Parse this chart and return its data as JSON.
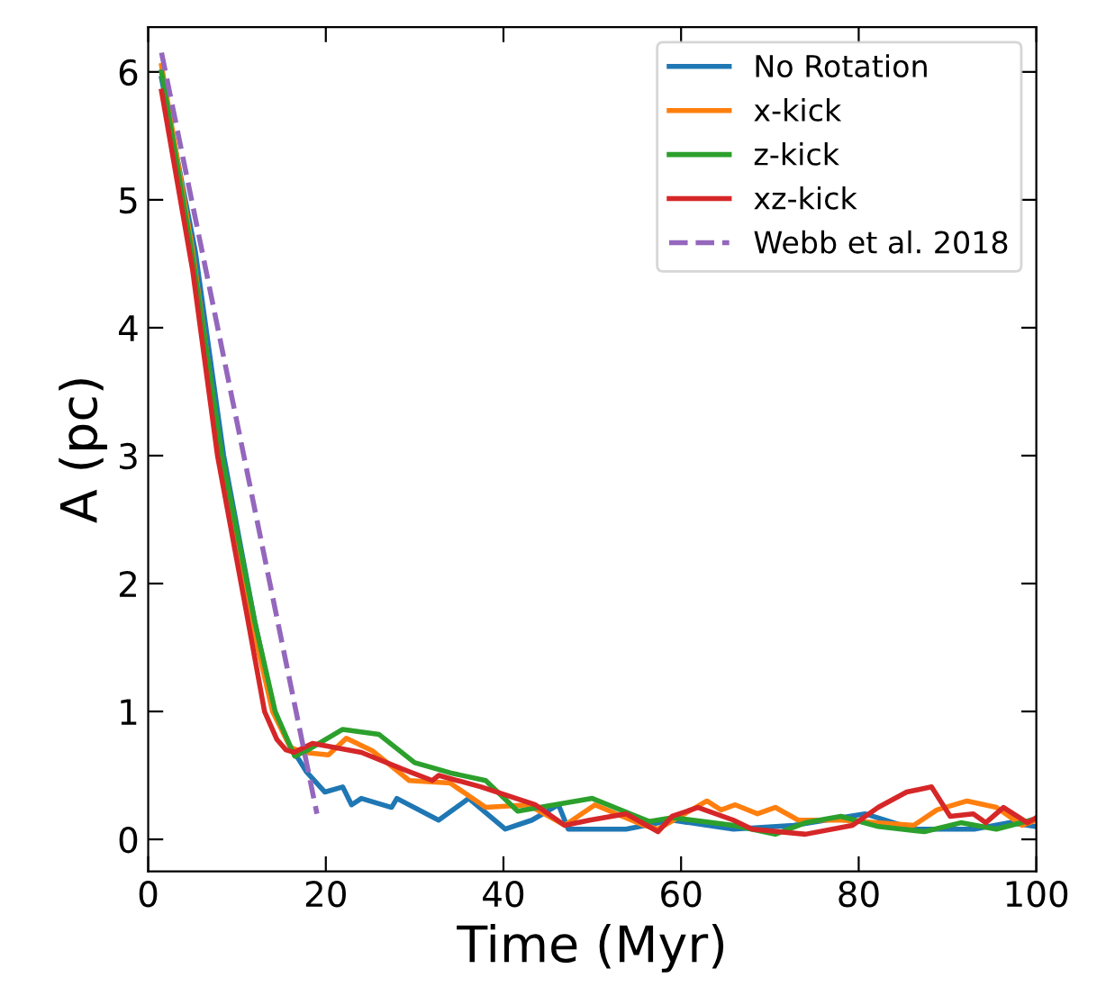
{
  "chart_data": {
    "type": "line",
    "xlabel": "Time (Myr)",
    "ylabel": "A (pc)",
    "xlim": [
      0,
      100
    ],
    "ylim": [
      -0.25,
      6.35
    ],
    "xticks": [
      0,
      20,
      40,
      60,
      80,
      100
    ],
    "yticks": [
      0,
      1,
      2,
      3,
      4,
      5,
      6
    ],
    "grid": false,
    "legend": "top right",
    "series": [
      {
        "name": "No Rotation",
        "color": "#1f77b4",
        "x": [
          1.5,
          5.3,
          8.5,
          12,
          14.2,
          16,
          17,
          17.8,
          19.9,
          21.9,
          22.9,
          24,
          27.4,
          28,
          32.7,
          36.1,
          40.2,
          43.2,
          46.2,
          47.3,
          53.8,
          59,
          65.9,
          72.7,
          80.7,
          86.2,
          93,
          97,
          100
        ],
        "values": [
          5.95,
          4.6,
          3.0,
          1.7,
          1.0,
          0.72,
          0.62,
          0.53,
          0.37,
          0.41,
          0.27,
          0.32,
          0.25,
          0.32,
          0.15,
          0.32,
          0.08,
          0.15,
          0.27,
          0.08,
          0.08,
          0.15,
          0.08,
          0.11,
          0.2,
          0.08,
          0.08,
          0.13,
          0.1
        ]
      },
      {
        "name": "x-kick",
        "color": "#ff7f0e",
        "x": [
          1.5,
          5,
          8.2,
          11.5,
          14,
          16,
          17.5,
          20.3,
          22.3,
          25.3,
          29.4,
          34,
          38,
          42.8,
          46.9,
          50.3,
          55.8,
          57.4,
          62.9,
          64.5,
          66.1,
          68.6,
          70.6,
          73.2,
          78.1,
          86.2,
          88.8,
          92.2,
          95.5,
          98.4,
          100
        ],
        "values": [
          6.05,
          4.6,
          3.0,
          1.75,
          1.0,
          0.72,
          0.68,
          0.66,
          0.79,
          0.69,
          0.46,
          0.44,
          0.25,
          0.27,
          0.11,
          0.27,
          0.11,
          0.08,
          0.3,
          0.23,
          0.27,
          0.2,
          0.25,
          0.15,
          0.15,
          0.11,
          0.23,
          0.3,
          0.25,
          0.11,
          0.15
        ]
      },
      {
        "name": "z-kick",
        "color": "#2ca02c",
        "x": [
          1.5,
          5,
          8.3,
          12,
          14.3,
          16.5,
          18,
          21.9,
          26,
          30,
          34,
          38,
          41.6,
          50,
          55,
          56.4,
          59,
          65.9,
          70.6,
          74,
          78,
          82.2,
          87.4,
          91.5,
          95.5,
          99.4
        ],
        "values": [
          6.0,
          4.55,
          3.0,
          1.7,
          1.0,
          0.65,
          0.7,
          0.86,
          0.82,
          0.6,
          0.52,
          0.46,
          0.22,
          0.32,
          0.18,
          0.14,
          0.17,
          0.11,
          0.04,
          0.13,
          0.18,
          0.1,
          0.06,
          0.13,
          0.08,
          0.15
        ]
      },
      {
        "name": "xz-kick",
        "color": "#d62728",
        "x": [
          1.5,
          5,
          7.8,
          11,
          13.1,
          14.5,
          15.5,
          16.4,
          18.5,
          24,
          28.6,
          32,
          32.7,
          37.5,
          43.6,
          46.9,
          49.7,
          53.8,
          57.4,
          59,
          61.9,
          65.9,
          68,
          74,
          79.3,
          82.2,
          85.4,
          88.2,
          90.3,
          92.9,
          94.3,
          96.3,
          99,
          100
        ],
        "values": [
          5.85,
          4.45,
          3.0,
          1.8,
          1.0,
          0.78,
          0.7,
          0.68,
          0.75,
          0.68,
          0.55,
          0.46,
          0.5,
          0.41,
          0.27,
          0.11,
          0.15,
          0.2,
          0.06,
          0.18,
          0.25,
          0.15,
          0.08,
          0.04,
          0.11,
          0.25,
          0.37,
          0.41,
          0.18,
          0.2,
          0.13,
          0.25,
          0.13,
          0.17
        ]
      },
      {
        "name": "Webb et al. 2018",
        "color": "#9467bd",
        "line_style": "dashed",
        "x": [
          1.5,
          19
        ],
        "values": [
          6.15,
          0.2
        ]
      }
    ]
  }
}
